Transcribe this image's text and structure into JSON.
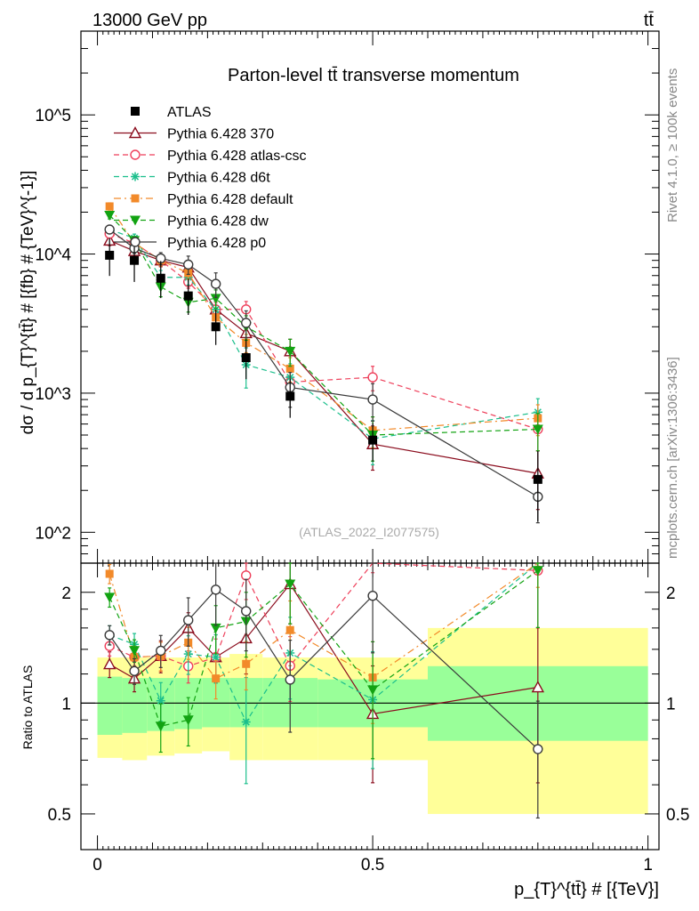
{
  "header": {
    "left": "13000 GeV pp",
    "right": "tt̄",
    "side_right_top": "Rivet 4.1.0, ≥ 100k events",
    "side_right_bottom": "mcplots.cern.ch [arXiv:1306:3436]"
  },
  "chart_data": {
    "type": "scatter",
    "title": "Parton-level tt̄ transverse momentum",
    "watermark": "(ATLAS_2022_I2077575)",
    "xlabel": "p_{T}^{tt̄} # [{TeV}]",
    "ylabel": "dσ / d p_{T}^{tt̄} # [{fb} # {TeV}^{-1}]",
    "ratio_ylabel": "Ratio to ATLAS",
    "xlim": [
      -0.03,
      1.02
    ],
    "ylim": [
      60,
      400000
    ],
    "ratio_ylim": [
      0.4,
      2.4
    ],
    "x_ticks": [
      "0",
      "0.5",
      "1"
    ],
    "y_ticks": [
      "10^2",
      "10^3",
      "10^4",
      "10^5"
    ],
    "ratio_ticks": [
      "0.5",
      "1",
      "2"
    ],
    "ratio_ticks_right": [
      "0.5",
      "1",
      "2"
    ],
    "bins": [
      {
        "lo": 0.0,
        "hi": 0.045
      },
      {
        "lo": 0.045,
        "hi": 0.09
      },
      {
        "lo": 0.09,
        "hi": 0.14
      },
      {
        "lo": 0.14,
        "hi": 0.19
      },
      {
        "lo": 0.19,
        "hi": 0.24
      },
      {
        "lo": 0.24,
        "hi": 0.3
      },
      {
        "lo": 0.3,
        "hi": 0.4
      },
      {
        "lo": 0.4,
        "hi": 0.6
      },
      {
        "lo": 0.6,
        "hi": 1.0
      }
    ],
    "x": [
      0.022,
      0.067,
      0.115,
      0.165,
      0.215,
      0.27,
      0.35,
      0.5,
      0.8
    ],
    "data": {
      "name": "ATLAS",
      "values": [
        9800,
        9000,
        6700,
        5000,
        3000,
        1800,
        950,
        460,
        240
      ],
      "band_inner": [
        [
          0.82,
          1.18
        ],
        [
          0.83,
          1.17
        ],
        [
          0.84,
          1.17
        ],
        [
          0.85,
          1.17
        ],
        [
          0.86,
          1.17
        ],
        [
          0.86,
          1.17
        ],
        [
          0.86,
          1.17
        ],
        [
          0.86,
          1.16
        ],
        [
          0.79,
          1.26
        ]
      ],
      "band_outer": [
        [
          0.71,
          1.33
        ],
        [
          0.7,
          1.33
        ],
        [
          0.72,
          1.33
        ],
        [
          0.73,
          1.33
        ],
        [
          0.74,
          1.33
        ],
        [
          0.7,
          1.36
        ],
        [
          0.7,
          1.33
        ],
        [
          0.7,
          1.33
        ],
        [
          0.5,
          1.6
        ]
      ]
    },
    "series": [
      {
        "name": "Pythia 6.428 370",
        "color": "#8b0d1e",
        "dash": "",
        "marker": "triangle-open",
        "values": [
          12500,
          10500,
          9000,
          8000,
          4000,
          2700,
          2000,
          430,
          265
        ],
        "errors": [
          0.08,
          0.08,
          0.1,
          0.1,
          0.15,
          0.2,
          0.22,
          0.35,
          0.45
        ]
      },
      {
        "name": "Pythia 6.428 atlas-csc",
        "color": "#ee3f5a",
        "dash": "6,4",
        "marker": "circle-open",
        "values": [
          14000,
          12000,
          9000,
          6300,
          4000,
          4000,
          1200,
          1300,
          550
        ],
        "errors": [
          0.06,
          0.07,
          0.09,
          0.1,
          0.12,
          0.14,
          0.2,
          0.2,
          0.3
        ]
      },
      {
        "name": "Pythia 6.428 d6t",
        "color": "#1bbf8c",
        "dash": "6,4",
        "marker": "asterisk",
        "values": [
          15000,
          13000,
          6800,
          6800,
          4000,
          1600,
          1300,
          470,
          730
        ],
        "errors": [
          0.06,
          0.07,
          0.12,
          0.12,
          0.15,
          0.32,
          0.25,
          0.35,
          0.25
        ]
      },
      {
        "name": "Pythia 6.428 default",
        "color": "#f28a2a",
        "dash": "8,4,2,4",
        "marker": "square",
        "values": [
          22000,
          12000,
          9000,
          7300,
          3500,
          2300,
          1500,
          540,
          660
        ],
        "errors": [
          0.06,
          0.07,
          0.09,
          0.1,
          0.12,
          0.15,
          0.2,
          0.25,
          0.25
        ]
      },
      {
        "name": "Pythia 6.428 dw",
        "color": "#12a312",
        "dash": "6,4",
        "marker": "triangle-down",
        "values": [
          19000,
          12500,
          5800,
          4500,
          4800,
          3000,
          2000,
          500,
          550
        ],
        "errors": [
          0.06,
          0.07,
          0.15,
          0.15,
          0.15,
          0.2,
          0.22,
          0.35,
          0.3
        ]
      },
      {
        "name": "Pythia 6.428 p0",
        "color": "#3a3a3a",
        "dash": "",
        "marker": "circle-open",
        "values": [
          15000,
          11000,
          9300,
          8400,
          6100,
          3200,
          1100,
          900,
          180
        ],
        "errors": [
          0.06,
          0.08,
          0.1,
          0.15,
          0.2,
          0.22,
          0.28,
          0.3,
          0.35
        ]
      }
    ]
  }
}
